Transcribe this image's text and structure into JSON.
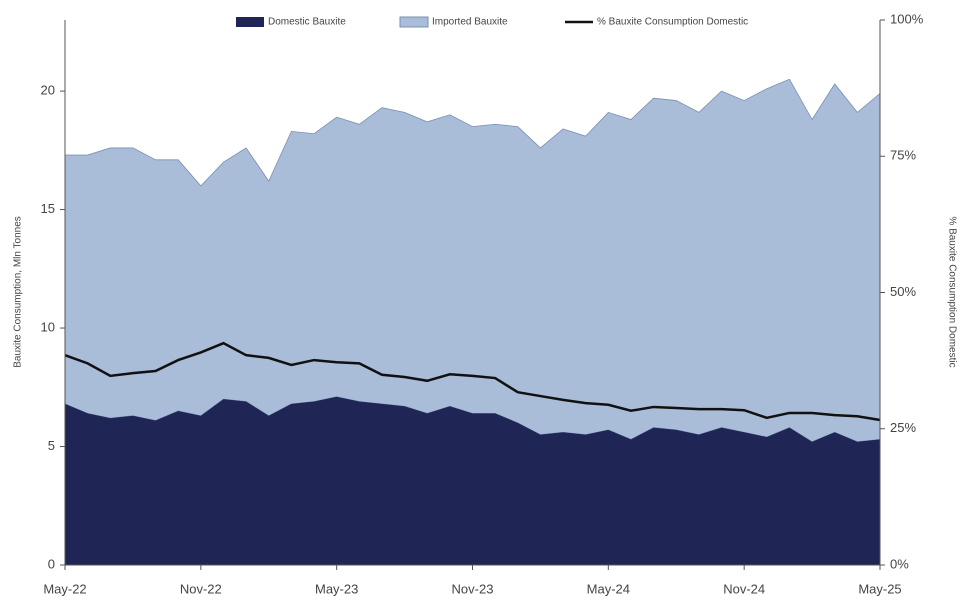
{
  "chart_data": {
    "type": "stacked-area-line",
    "y_label": "Bauxite Consumption, Mln Tonnes",
    "y2_label": "% Bauxite Consumption Domestic",
    "categories": [
      "May-22",
      null,
      null,
      null,
      null,
      null,
      "Nov-22",
      null,
      null,
      null,
      null,
      null,
      "May-23",
      null,
      null,
      null,
      null,
      null,
      "Nov-23",
      null,
      null,
      null,
      null,
      null,
      "May-24",
      null,
      null,
      null,
      null,
      null,
      "Nov-24",
      null,
      null,
      null,
      null,
      null,
      "May-25"
    ],
    "series": [
      {
        "name": "Domestic Bauxite",
        "color": "#1f2554",
        "values": [
          6.8,
          6.4,
          6.2,
          6.3,
          6.1,
          6.5,
          6.3,
          7.0,
          6.9,
          6.3,
          6.8,
          6.9,
          7.1,
          6.9,
          6.8,
          6.7,
          6.4,
          6.7,
          6.4,
          6.4,
          6.0,
          5.5,
          5.6,
          5.5,
          5.7,
          5.3,
          5.8,
          5.7,
          5.5,
          5.8,
          5.6,
          5.4,
          5.8,
          5.2,
          5.6,
          5.2,
          5.3
        ]
      },
      {
        "name": "Imported Bauxite",
        "color": "#a9bdd8",
        "values": [
          10.5,
          10.9,
          11.4,
          11.3,
          11.0,
          10.6,
          9.7,
          10.0,
          10.7,
          9.9,
          11.5,
          11.3,
          11.8,
          11.7,
          12.5,
          12.4,
          12.3,
          12.3,
          12.1,
          12.2,
          12.5,
          12.1,
          12.8,
          12.6,
          13.4,
          13.5,
          13.9,
          13.9,
          13.6,
          14.2,
          14.0,
          14.7,
          14.7,
          13.6,
          14.7,
          13.9,
          14.6
        ]
      },
      {
        "name": "% Bauxite Consumption Domestic",
        "color": "#111111",
        "axis": "y2",
        "values": [
          38.5,
          37,
          34.7,
          35.2,
          35.6,
          37.6,
          39,
          40.7,
          38.5,
          38,
          36.7,
          37.6,
          37.2,
          37,
          34.9,
          34.5,
          33.8,
          35,
          34.7,
          34.3,
          31.7,
          31,
          30.3,
          29.7,
          29.4,
          28.3,
          29,
          28.8,
          28.6,
          28.6,
          28.4,
          27,
          27.9,
          27.9,
          27.5,
          27.3,
          26.6
        ]
      }
    ],
    "ylim": [
      0,
      23
    ],
    "yticks": [
      0,
      5,
      10,
      15,
      20
    ],
    "y2lim": [
      0,
      100
    ],
    "y2ticks": [
      {
        "value": 0,
        "label": "0%"
      },
      {
        "value": 25,
        "label": "25%"
      },
      {
        "value": 50,
        "label": "50%"
      },
      {
        "value": 75,
        "label": "75%"
      },
      {
        "value": 100,
        "label": "100%"
      }
    ],
    "legend": "top"
  }
}
